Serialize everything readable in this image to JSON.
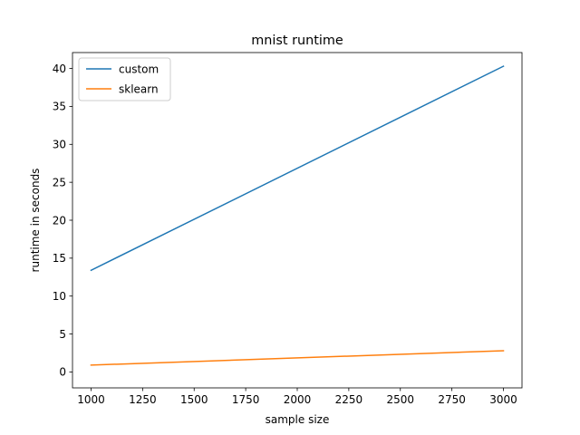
{
  "chart_data": {
    "type": "line",
    "title": "mnist runtime",
    "xlabel": "sample size",
    "ylabel": "runtime in seconds",
    "x": [
      1000,
      3000
    ],
    "series": [
      {
        "name": "custom",
        "color": "#1f77b4",
        "values": [
          13.4,
          40.3
        ]
      },
      {
        "name": "sklearn",
        "color": "#ff7f0e",
        "values": [
          0.9,
          2.8
        ]
      }
    ],
    "xlim": [
      910,
      3090
    ],
    "ylim": [
      -2.1,
      42.1
    ],
    "xticks": [
      1000,
      1250,
      1500,
      1750,
      2000,
      2250,
      2500,
      2750,
      3000
    ],
    "xtick_labels": [
      "1000",
      "1250",
      "1500",
      "1750",
      "2000",
      "2250",
      "2500",
      "2750",
      "3000"
    ],
    "yticks": [
      0,
      5,
      10,
      15,
      20,
      25,
      30,
      35,
      40
    ],
    "ytick_labels": [
      "0",
      "5",
      "10",
      "15",
      "20",
      "25",
      "30",
      "35",
      "40"
    ],
    "grid": false,
    "legend": "top-left"
  }
}
